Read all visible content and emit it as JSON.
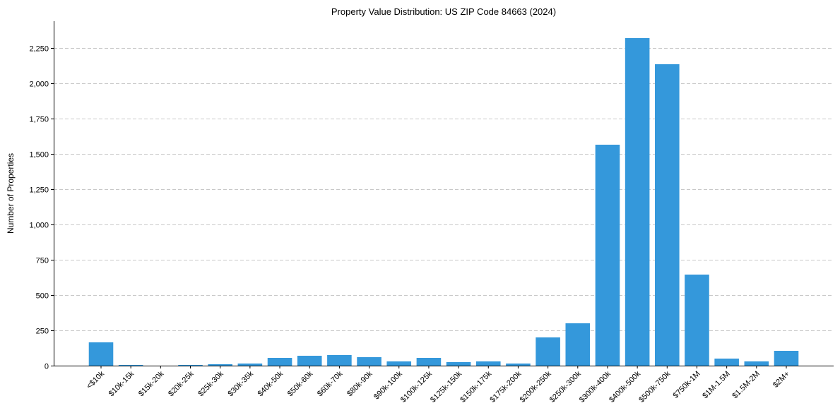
{
  "chart_data": {
    "type": "bar",
    "title": "Property Value Distribution: US ZIP Code 84663 (2024)",
    "xlabel": "",
    "ylabel": "Number of Properties",
    "ylim": [
      0,
      2440
    ],
    "yticks": [
      0,
      250,
      500,
      750,
      1000,
      1250,
      1500,
      1750,
      2000,
      2250
    ],
    "ytick_labels": [
      "0",
      "250",
      "500",
      "750",
      "1,000",
      "1,250",
      "1,500",
      "1,750",
      "2,000",
      "2,250"
    ],
    "grid": "y-dashed",
    "bar_color": "#3498db",
    "categories": [
      "<$10k",
      "$10k-15k",
      "$15k-20k",
      "$20k-25k",
      "$25k-30k",
      "$30k-35k",
      "$40k-50k",
      "$50k-60k",
      "$60k-70k",
      "$80k-90k",
      "$90k-100k",
      "$100k-125k",
      "$125k-150k",
      "$150k-175k",
      "$175k-200k",
      "$200k-250k",
      "$250k-300k",
      "$300k-400k",
      "$400k-500k",
      "$500k-750k",
      "$750k-1M",
      "$1M-1.5M",
      "$1.5M-2M",
      "$2M+"
    ],
    "values": [
      165,
      5,
      0,
      5,
      10,
      15,
      55,
      70,
      75,
      60,
      30,
      55,
      25,
      30,
      15,
      200,
      300,
      1565,
      2320,
      2135,
      645,
      50,
      30,
      105
    ]
  }
}
